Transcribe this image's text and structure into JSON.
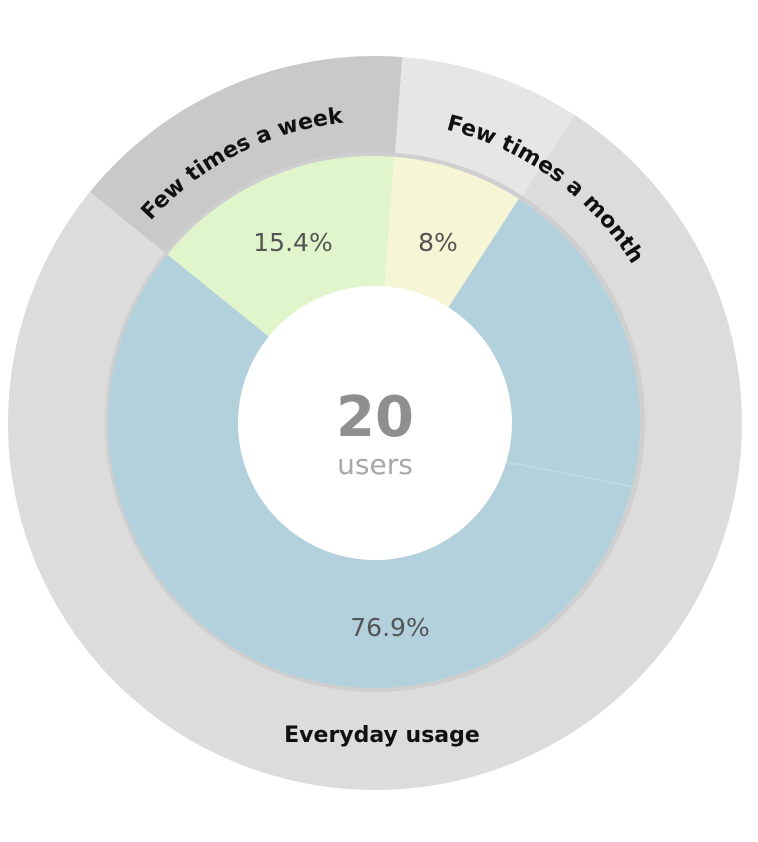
{
  "chart_data": {
    "type": "pie",
    "center": {
      "value": "20",
      "unit": "users"
    },
    "outer_ring": [
      {
        "label": "Few times a week",
        "share": 15.4,
        "color": "#c9c9c9"
      },
      {
        "label": "Few times a month",
        "share": 8,
        "color": "#e6e6e6"
      },
      {
        "label": "Everyday usage",
        "share": 76.9,
        "color": "#dcdcdc"
      }
    ],
    "inner_ring": [
      {
        "label": "15.4%",
        "value": 15.4,
        "color": "#e0f5cc"
      },
      {
        "label": "8%",
        "value": 8,
        "color": "#f6f5d6"
      },
      {
        "label": "76.9%",
        "value": 76.9,
        "color": "#b3d1dc"
      }
    ]
  }
}
